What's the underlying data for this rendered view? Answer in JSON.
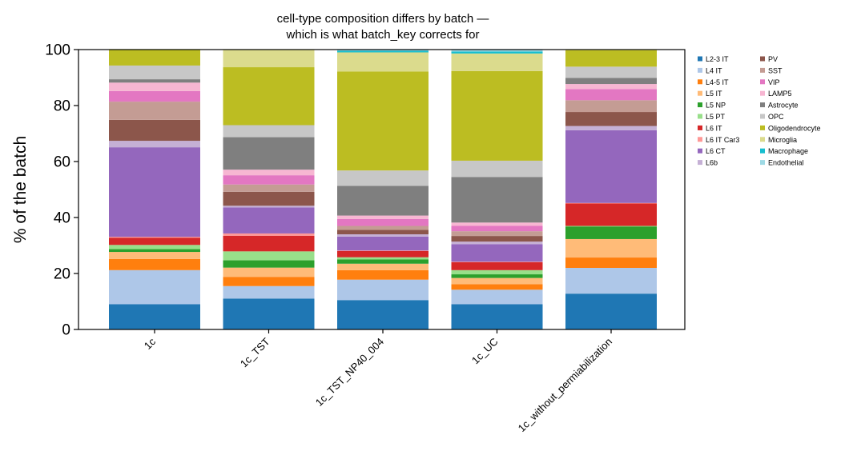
{
  "chart_data": {
    "type": "bar",
    "stacked": true,
    "title_lines": [
      "cell-type composition differs by batch —",
      "which is what batch_key corrects for"
    ],
    "xlabel": "",
    "ylabel": "% of the batch",
    "ylim": [
      0,
      100
    ],
    "yticks": [
      0,
      20,
      40,
      60,
      80,
      100
    ],
    "grid": false,
    "legend_position": "right, outside plot, two columns",
    "categories": [
      "1c",
      "1c_TST",
      "1c_TST_NP40_004",
      "1c_UC",
      "1c_without_permiabilization"
    ],
    "series": [
      {
        "name": "L2-3 IT",
        "color": "#1f77b4",
        "values": [
          9.0,
          11.0,
          10.5,
          9.0,
          12.8
        ]
      },
      {
        "name": "L4 IT",
        "color": "#aec7e8",
        "values": [
          12.2,
          4.5,
          7.3,
          5.2,
          9.2
        ]
      },
      {
        "name": "L4-5 IT",
        "color": "#ff7f0e",
        "values": [
          4.0,
          3.3,
          3.4,
          2.0,
          3.7
        ]
      },
      {
        "name": "L5 IT",
        "color": "#ffbb78",
        "values": [
          2.5,
          3.3,
          2.3,
          2.2,
          6.6
        ]
      },
      {
        "name": "L5 NP",
        "color": "#2ca02c",
        "values": [
          1.0,
          2.6,
          1.5,
          1.3,
          4.5
        ]
      },
      {
        "name": "L5 PT",
        "color": "#98df8a",
        "values": [
          1.5,
          3.2,
          0.8,
          1.5,
          0.2
        ]
      },
      {
        "name": "L6 IT",
        "color": "#d62728",
        "values": [
          2.6,
          5.6,
          2.2,
          2.8,
          8.0
        ]
      },
      {
        "name": "L6 IT Car3",
        "color": "#ff9896",
        "values": [
          0.3,
          0.8,
          0.2,
          0.2,
          0.2
        ]
      },
      {
        "name": "L6 CT",
        "color": "#9467bd",
        "values": [
          32.0,
          9.3,
          5.0,
          6.3,
          26.0
        ]
      },
      {
        "name": "L6b",
        "color": "#c5b0d5",
        "values": [
          2.3,
          0.6,
          0.8,
          0.9,
          1.5
        ]
      },
      {
        "name": "PV",
        "color": "#8c564b",
        "values": [
          7.5,
          5.0,
          1.6,
          2.0,
          5.0
        ]
      },
      {
        "name": "SST",
        "color": "#c49c94",
        "values": [
          6.5,
          2.6,
          1.4,
          1.7,
          4.2
        ]
      },
      {
        "name": "VIP",
        "color": "#e377c2",
        "values": [
          3.8,
          3.3,
          2.5,
          1.9,
          4.0
        ]
      },
      {
        "name": "LAMP5",
        "color": "#f7b6d2",
        "values": [
          3.0,
          2.0,
          1.2,
          1.2,
          1.8
        ]
      },
      {
        "name": "Astrocyte",
        "color": "#7f7f7f",
        "values": [
          1.2,
          11.6,
          10.6,
          16.3,
          2.2
        ]
      },
      {
        "name": "OPC",
        "color": "#c7c7c7",
        "values": [
          4.9,
          4.3,
          5.5,
          5.8,
          4.0
        ]
      },
      {
        "name": "Oligodendrocyte",
        "color": "#bcbd22",
        "values": [
          5.7,
          20.7,
          35.4,
          32.0,
          5.9
        ]
      },
      {
        "name": "Microglia",
        "color": "#dbdb8d",
        "values": [
          0,
          6.3,
          6.8,
          6.3,
          0
        ]
      },
      {
        "name": "Macrophage",
        "color": "#17becf",
        "values": [
          0,
          0,
          0.6,
          0.7,
          0
        ]
      },
      {
        "name": "Endothelial",
        "color": "#9edae5",
        "values": [
          0,
          0,
          0.4,
          0.7,
          0
        ]
      }
    ]
  }
}
